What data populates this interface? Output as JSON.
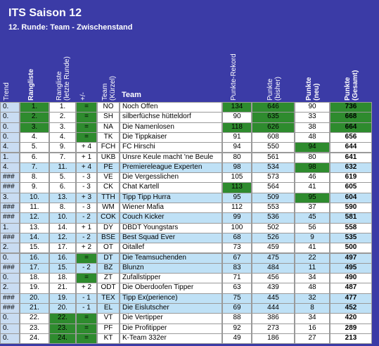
{
  "header": {
    "title": "ITS Saison 12",
    "subtitle": "12. Runde: Team - Zwischenstand"
  },
  "table": {
    "columns": [
      "Trend",
      "Rangliste",
      "Rangliste (letzte Runde)",
      "+/-",
      "Team (Kürzel)",
      "Team",
      "Punkte-Rekord",
      "Punkte (bisher)",
      "Punkte (neu)",
      "Punkte (Gesamt)"
    ],
    "rows": [
      [
        "0.",
        "1.",
        "1.",
        "=",
        "NO",
        "Noch Offen",
        134,
        646,
        90,
        736
      ],
      [
        "0.",
        "2.",
        "2.",
        "=",
        "SH",
        "silberfüchse hütteldorf",
        90,
        635,
        33,
        668
      ],
      [
        "0.",
        "3.",
        "3.",
        "=",
        "NA",
        "Die Namenlosen",
        118,
        626,
        38,
        664
      ],
      [
        "0.",
        "4.",
        "4.",
        "=",
        "TK",
        "Die Tippkaiser",
        91,
        608,
        48,
        656
      ],
      [
        "4.",
        "5.",
        "9.",
        "+ 4",
        "FCH",
        "FC Hirschi",
        94,
        550,
        94,
        644
      ],
      [
        "1.",
        "6.",
        "7.",
        "+ 1",
        "UKB",
        "Unsre Keule macht 'ne Beule",
        80,
        561,
        80,
        641
      ],
      [
        "4.",
        "7.",
        "11.",
        "+ 4",
        "PE",
        "Premiereleague Experten",
        98,
        534,
        98,
        632
      ],
      [
        "###",
        "8.",
        "5.",
        "- 3",
        "VE",
        "Die Vergesslichen",
        105,
        573,
        46,
        619
      ],
      [
        "###",
        "9.",
        "6.",
        "- 3",
        "CK",
        "Chat Kartell",
        113,
        564,
        41,
        605
      ],
      [
        "3.",
        "10.",
        "13.",
        "+ 3",
        "TTH",
        "Tipp Tipp Hurra",
        95,
        509,
        95,
        604
      ],
      [
        "###",
        "11.",
        "8.",
        "- 3",
        "WM",
        "Wiener Mafia",
        112,
        553,
        37,
        590
      ],
      [
        "###",
        "12.",
        "10.",
        "- 2",
        "COK",
        "Couch Kicker",
        99,
        536,
        45,
        581
      ],
      [
        "1.",
        "13.",
        "14.",
        "+ 1",
        "DY",
        "DBDT Youngstars",
        100,
        502,
        56,
        558
      ],
      [
        "###",
        "14.",
        "12.",
        "- 2",
        "BSE",
        "Best Squad Ever",
        68,
        526,
        9,
        535
      ],
      [
        "2.",
        "15.",
        "17.",
        "+ 2",
        "OT",
        "Oitallef",
        73,
        459,
        41,
        500
      ],
      [
        "0.",
        "16.",
        "16.",
        "=",
        "DT",
        "Die Teamsuchenden",
        67,
        475,
        22,
        497
      ],
      [
        "###",
        "17.",
        "15.",
        "- 2",
        "BZ",
        "Blunzn",
        83,
        484,
        11,
        495
      ],
      [
        "0.",
        "18.",
        "18.",
        "=",
        "ZT",
        "Zufallstipper",
        71,
        456,
        34,
        490
      ],
      [
        "2.",
        "19.",
        "21.",
        "+ 2",
        "ODT",
        "Die Oberdoofen Tipper",
        63,
        439,
        48,
        487
      ],
      [
        "###",
        "20.",
        "19.",
        "- 1",
        "TEX",
        "Tipp Ex(perience)",
        75,
        445,
        32,
        477
      ],
      [
        "###",
        "21.",
        "20.",
        "- 1",
        "EL",
        "Die Eislutscher",
        69,
        444,
        8,
        452
      ],
      [
        "0.",
        "22.",
        "22.",
        "=",
        "VT",
        "Die Vertipper",
        88,
        386,
        34,
        420
      ],
      [
        "0.",
        "23.",
        "23.",
        "=",
        "PF",
        "Die Profitipper",
        92,
        273,
        16,
        289
      ],
      [
        "0.",
        "24.",
        "24.",
        "=",
        "KT",
        "K-Team 332er",
        49,
        186,
        27,
        213
      ]
    ]
  }
}
